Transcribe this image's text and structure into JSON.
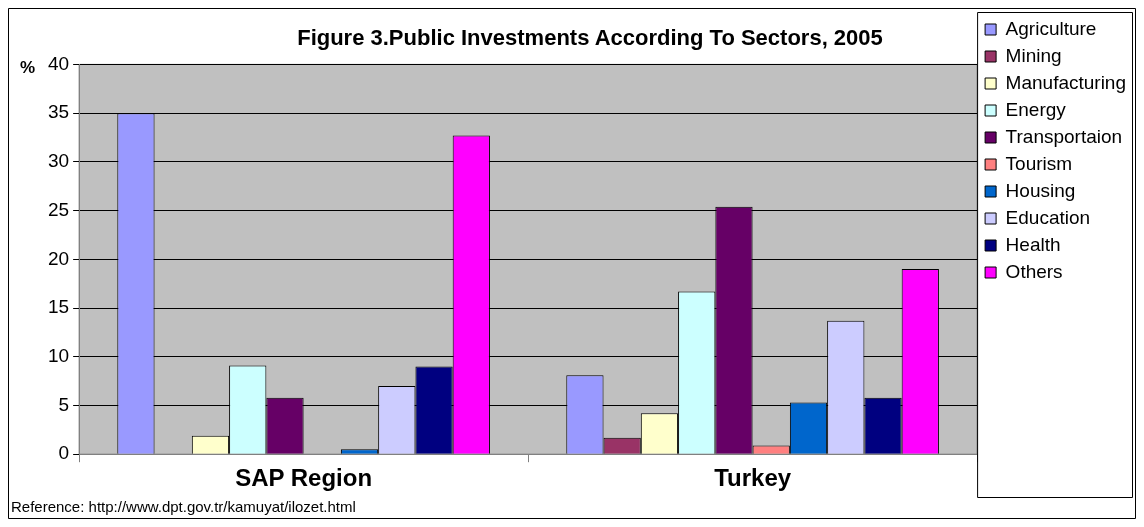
{
  "chart_data": {
    "type": "bar",
    "title": "Figure 3.Public Investments According To Sectors, 2005",
    "ylabel": "%",
    "categories": [
      "SAP Region",
      "Turkey"
    ],
    "series": [
      {
        "name": "Agriculture",
        "color": "#9999ff",
        "values": [
          35,
          8.1
        ]
      },
      {
        "name": "Mining",
        "color": "#993366",
        "values": [
          null,
          1.7
        ]
      },
      {
        "name": "Manufacturing",
        "color": "#ffffcc",
        "values": [
          1.9,
          4.2
        ]
      },
      {
        "name": "Energy",
        "color": "#ccffff",
        "values": [
          9.1,
          16.7
        ]
      },
      {
        "name": "Transportaion",
        "color": "#660066",
        "values": [
          5.8,
          25.4
        ]
      },
      {
        "name": "Tourism",
        "color": "#ff8080",
        "values": [
          null,
          0.9
        ]
      },
      {
        "name": "Housing",
        "color": "#0066cc",
        "values": [
          0.5,
          5.3
        ]
      },
      {
        "name": "Education",
        "color": "#ccccff",
        "values": [
          7.0,
          13.7
        ]
      },
      {
        "name": "Health",
        "color": "#000080",
        "values": [
          9.0,
          5.8
        ]
      },
      {
        "name": "Others",
        "color": "#ff00ff",
        "values": [
          32.7,
          19.0
        ]
      }
    ],
    "ylim": [
      0,
      40
    ],
    "yticks": [
      0,
      5,
      10,
      15,
      20,
      25,
      30,
      35,
      40
    ],
    "grid": "y",
    "legend": "right",
    "annotations": [
      "Reference: http://www.dpt.gov.tr/kamuyat/ilozet.html"
    ]
  }
}
